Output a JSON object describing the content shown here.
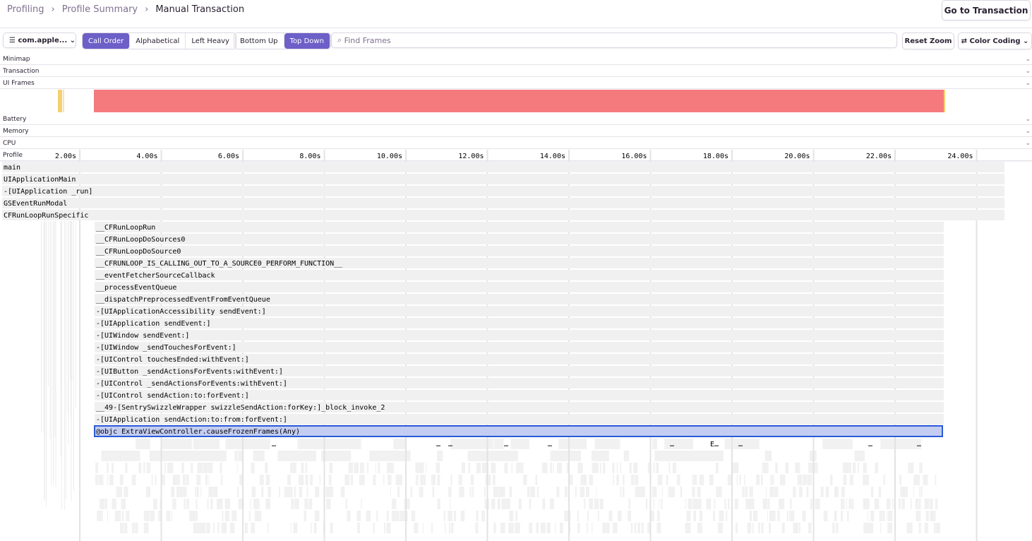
{
  "breadcrumbs": [
    "Profiling",
    "Profile Summary",
    "Manual Transaction"
  ],
  "header_button": "Go to Transaction",
  "toolbar": {
    "thread": "com.apple...",
    "order": [
      "Call Order",
      "Alphabetical",
      "Left Heavy"
    ],
    "view": [
      "Bottom Up",
      "Top Down"
    ],
    "search_placeholder": "Find Frames",
    "reset": "Reset Zoom",
    "color": "Color Coding"
  },
  "panels": [
    "Minimap",
    "Transaction",
    "UI Frames",
    "Battery",
    "Memory",
    "CPU",
    "Profile"
  ],
  "timeline_ticks": [
    "2.00s",
    "4.00s",
    "6.00s",
    "8.00s",
    "10.00s",
    "12.00s",
    "14.00s",
    "16.00s",
    "18.00s",
    "20.00s",
    "22.00s",
    "24.00s"
  ],
  "frames": [
    "main",
    "UIApplicationMain",
    "-[UIApplication _run]",
    "GSEventRunModal",
    "CFRunLoopRunSpecific",
    "__CFRunLoopRun",
    "__CFRunLoopDoSources0",
    "__CFRunLoopDoSource0",
    "__CFRUNLOOP_IS_CALLING_OUT_TO_A_SOURCE0_PERFORM_FUNCTION__",
    "__eventFetcherSourceCallback",
    "__processEventQueue",
    "__dispatchPreprocessedEventFromEventQueue",
    "-[UIApplicationAccessibility sendEvent:]",
    "-[UIApplication sendEvent:]",
    "-[UIWindow sendEvent:]",
    "-[UIWindow _sendTouchesForEvent:]",
    "-[UIControl touchesEnded:withEvent:]",
    "-[UIButton _sendActionsForEvents:withEvent:]",
    "-[UIControl _sendActionsForEvents:withEvent:]",
    "-[UIControl sendAction:to:forEvent:]",
    "__49-[SentrySwizzleWrapper swizzleSendAction:forKey:]_block_invoke_2",
    "-[UIApplication sendAction:to:from:forEvent:]",
    "@objc ExtraViewController.causeFrozenFrames(Any)"
  ],
  "child_labels": [
    "…",
    "…",
    "…",
    "…",
    "…",
    "…",
    "E…",
    "…",
    "…",
    "…"
  ]
}
